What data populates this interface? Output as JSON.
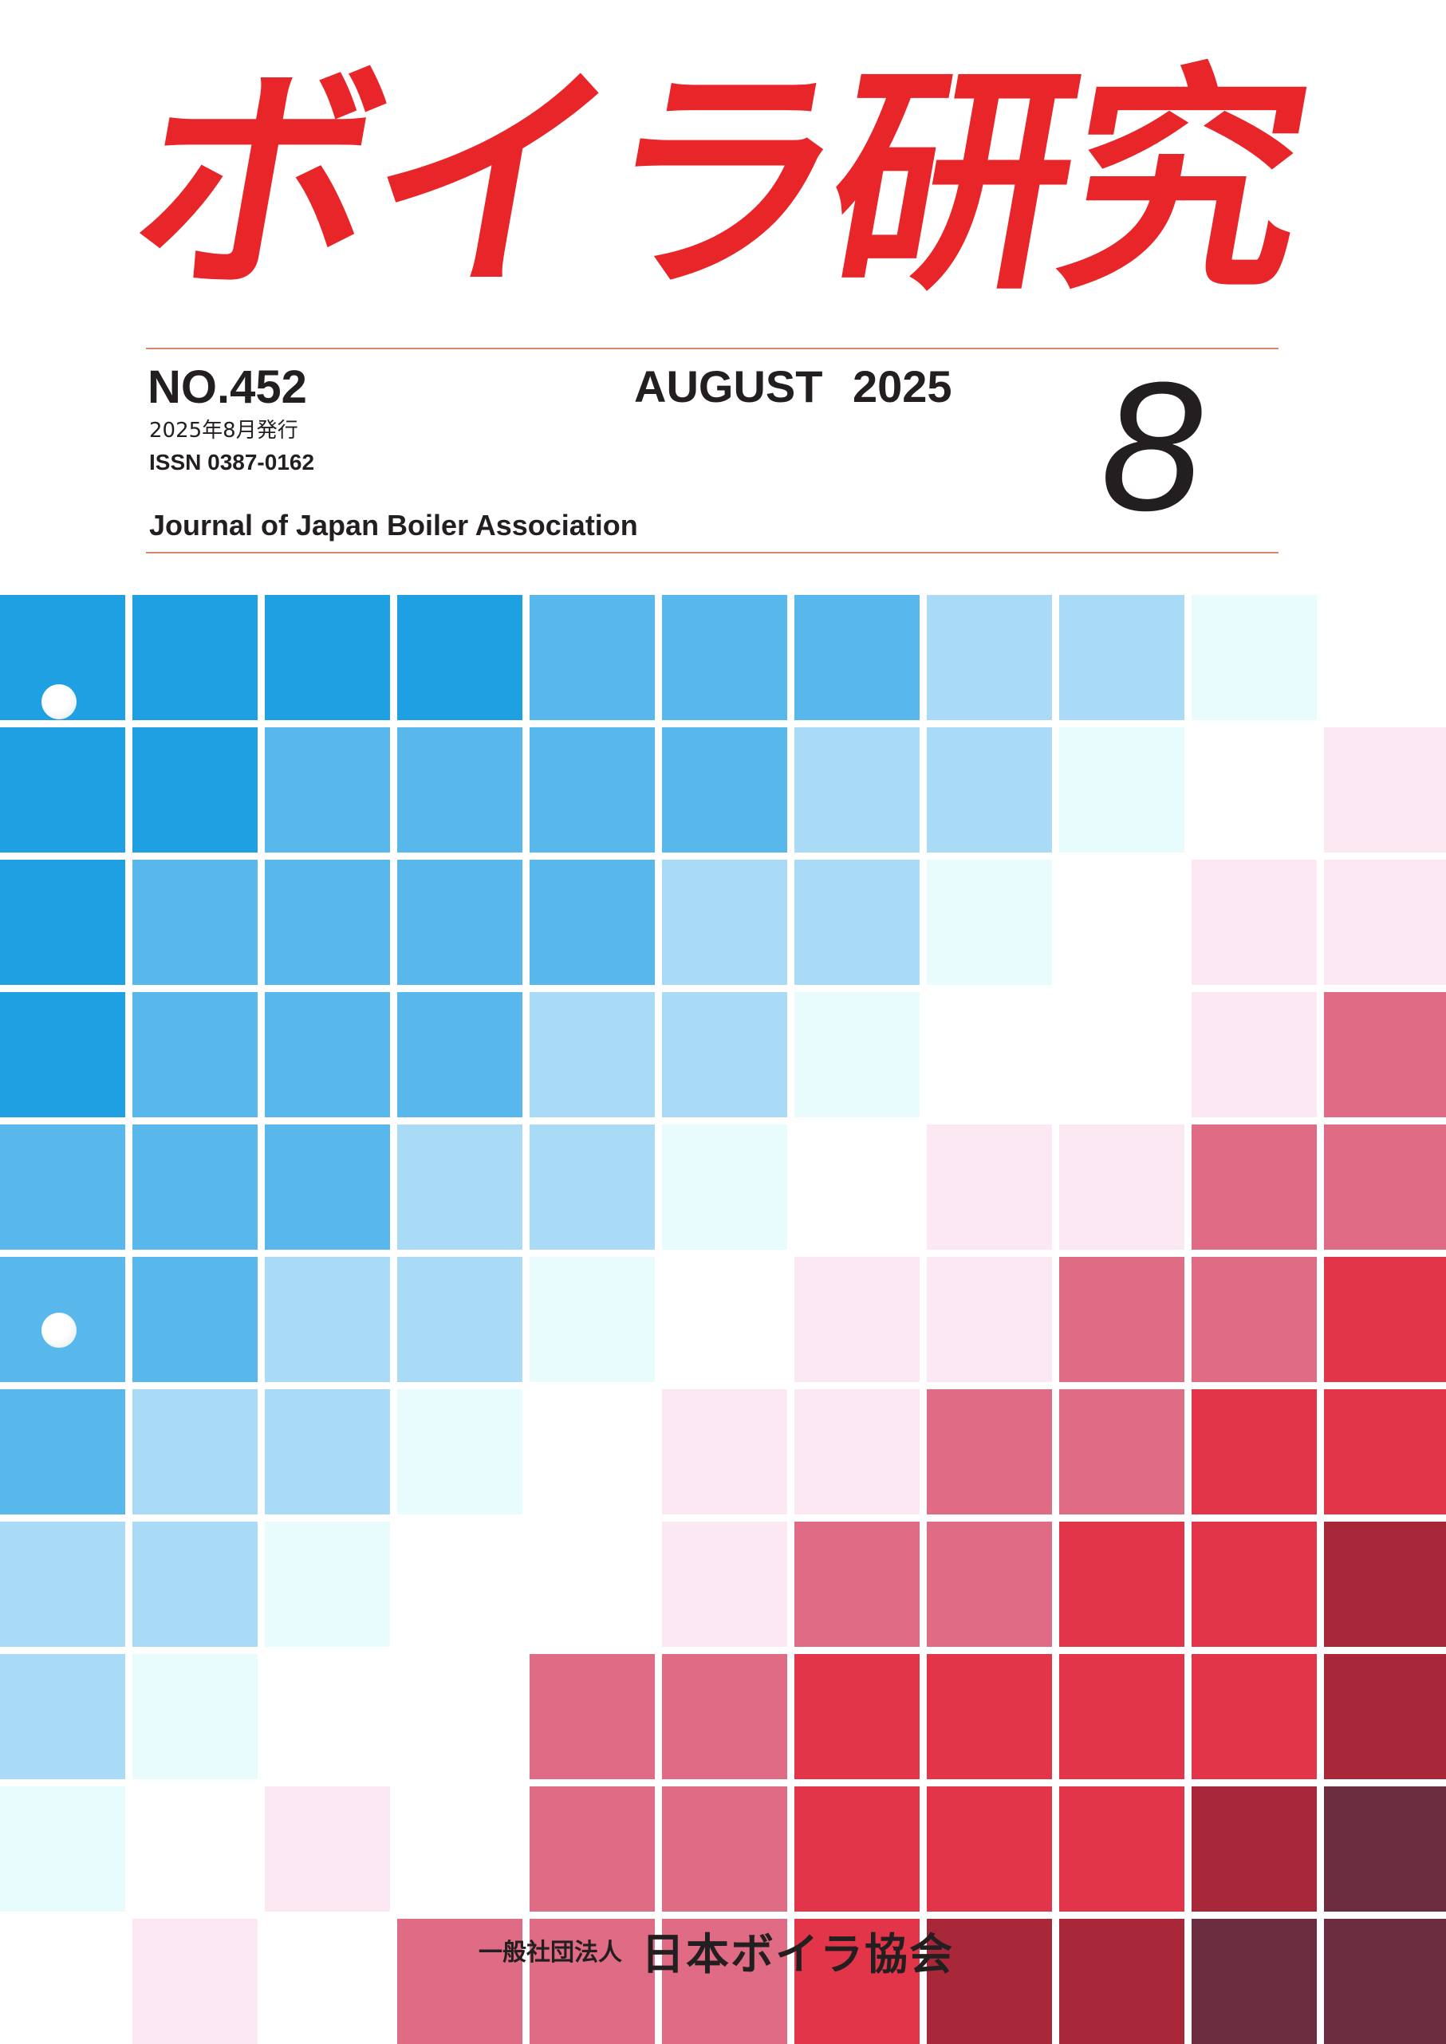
{
  "cover": {
    "title": "ボイラ研究",
    "issue_number": "NO.452",
    "issue_date_jp": "2025年8月発行",
    "issn": "ISSN 0387-0162",
    "journal_name": "Journal of Japan Boiler Association",
    "month_year": "AUGUST 2025",
    "month_number": "8",
    "publisher_prefix": "一般社団法人",
    "publisher_name": "日本ボイラ協会"
  },
  "colors": {
    "title_red": "#e8262a",
    "rule": "#d8866a",
    "text": "#231f20"
  },
  "mosaic_palette": [
    "#1ea0e3",
    "#58b8ec",
    "#a9dbf6",
    "#e8fbfd",
    "#ffffff",
    "#fbe8f3",
    "#df6b84",
    "#e2354a",
    "#a8283a",
    "#6b2d3f"
  ],
  "mosaic_grid": [
    [
      0,
      0,
      0,
      0,
      1,
      1,
      1,
      2,
      2,
      3,
      4
    ],
    [
      0,
      0,
      1,
      1,
      1,
      1,
      2,
      2,
      3,
      4,
      5
    ],
    [
      0,
      1,
      1,
      1,
      1,
      2,
      2,
      3,
      4,
      5,
      5
    ],
    [
      0,
      1,
      1,
      1,
      2,
      2,
      3,
      4,
      4,
      5,
      6
    ],
    [
      1,
      1,
      1,
      2,
      2,
      3,
      4,
      5,
      5,
      6,
      6
    ],
    [
      1,
      1,
      2,
      2,
      3,
      4,
      5,
      5,
      6,
      6,
      7
    ],
    [
      1,
      2,
      2,
      3,
      4,
      5,
      5,
      6,
      6,
      7,
      7
    ],
    [
      2,
      2,
      3,
      4,
      4,
      5,
      6,
      6,
      7,
      7,
      8
    ],
    [
      2,
      3,
      4,
      4,
      6,
      6,
      7,
      7,
      7,
      7,
      8
    ],
    [
      3,
      4,
      5,
      4,
      6,
      6,
      7,
      7,
      7,
      8,
      9
    ],
    [
      4,
      5,
      4,
      6,
      6,
      6,
      7,
      8,
      8,
      9,
      9
    ]
  ]
}
